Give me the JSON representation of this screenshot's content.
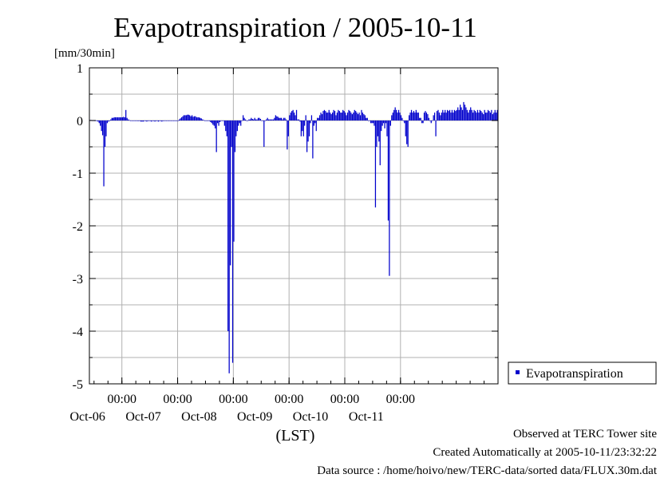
{
  "chart_data": {
    "type": "bar",
    "title": "Evapotranspiration / 2005-10-11",
    "ylabel": "[mm/30min]",
    "xlabel": "(LST)",
    "ylim": [
      -5,
      1
    ],
    "yticks": [
      "1",
      "0",
      "-1",
      "-2",
      "-3",
      "-4",
      "-5"
    ],
    "xticks": [
      {
        "time": "00:00",
        "date": "Oct-06"
      },
      {
        "time": "00:00",
        "date": "Oct-07"
      },
      {
        "time": "00:00",
        "date": "Oct-08"
      },
      {
        "time": "00:00",
        "date": "Oct-09"
      },
      {
        "time": "00:00",
        "date": "Oct-10"
      },
      {
        "time": "00:00",
        "date": "Oct-11"
      }
    ],
    "grid": true,
    "legend": {
      "position": "right",
      "entries": [
        "Evapotranspiration"
      ]
    },
    "series": [
      {
        "name": "Evapotranspiration",
        "color": "#0000cc",
        "interval": "30min",
        "values": [
          0.01,
          0.01,
          0.0,
          0.0,
          -0.01,
          -0.01,
          0.0,
          -0.02,
          -0.05,
          -0.1,
          -0.2,
          -0.28,
          -1.25,
          -0.5,
          -0.3,
          -0.05,
          -0.02,
          0.0,
          0.02,
          0.05,
          0.05,
          0.06,
          0.06,
          0.06,
          0.06,
          0.06,
          0.06,
          0.06,
          0.06,
          0.07,
          0.06,
          0.2,
          0.05,
          0.02,
          0.01,
          0.0,
          0.0,
          0.0,
          0.0,
          0.0,
          0.0,
          -0.01,
          -0.01,
          -0.01,
          -0.02,
          -0.02,
          -0.02,
          -0.01,
          -0.01,
          -0.02,
          -0.01,
          -0.01,
          -0.01,
          -0.02,
          -0.01,
          -0.01,
          -0.02,
          -0.01,
          -0.01,
          -0.02,
          -0.01,
          -0.01,
          -0.02,
          -0.01,
          0.0,
          0.0,
          0.0,
          0.0,
          0.0,
          0.0,
          0.0,
          0.0,
          0.0,
          0.0,
          0.0,
          0.0,
          0.0,
          0.02,
          0.04,
          0.06,
          0.08,
          0.1,
          0.1,
          0.1,
          0.11,
          0.11,
          0.1,
          0.08,
          0.1,
          0.07,
          0.08,
          0.08,
          0.06,
          0.06,
          0.06,
          0.05,
          0.04,
          0.02,
          0.01,
          0.0,
          0.0,
          0.0,
          0.0,
          -0.01,
          -0.03,
          -0.05,
          -0.08,
          -0.1,
          -0.15,
          -0.6,
          -0.05,
          -0.1,
          -0.03,
          0.0,
          0.0,
          0.0,
          -0.1,
          -0.2,
          -0.3,
          -4.0,
          -4.8,
          -2.75,
          -0.5,
          -4.6,
          -2.3,
          -0.6,
          -0.3,
          -0.2,
          -0.1,
          -0.05,
          -0.1,
          0.0,
          0.1,
          0.05,
          0.02,
          0.0,
          0.0,
          0.02,
          0.02,
          0.05,
          0.03,
          0.02,
          0.05,
          0.02,
          0.02,
          0.05,
          0.05,
          0.03,
          0.0,
          0.0,
          -0.5,
          0.0,
          0.02,
          0.05,
          0.02,
          0.02,
          0.02,
          0.02,
          0.02,
          0.05,
          0.1,
          0.08,
          0.07,
          0.05,
          0.05,
          0.05,
          0.02,
          0.05,
          0.05,
          0.02,
          -0.55,
          -0.3,
          0.1,
          0.15,
          0.18,
          0.2,
          0.15,
          0.1,
          0.2,
          0.02,
          0.02,
          -0.02,
          -0.3,
          -0.2,
          -0.3,
          -0.1,
          0.1,
          -0.6,
          -0.4,
          -0.3,
          -0.05,
          0.1,
          -0.72,
          -0.1,
          -0.05,
          -0.2,
          0.05,
          0.05,
          0.1,
          0.15,
          0.12,
          0.18,
          0.2,
          0.18,
          0.15,
          0.15,
          0.2,
          0.15,
          0.12,
          0.15,
          0.2,
          0.18,
          0.1,
          0.15,
          0.2,
          0.18,
          0.15,
          0.15,
          0.2,
          0.18,
          0.15,
          0.1,
          0.15,
          0.2,
          0.18,
          0.15,
          0.12,
          0.15,
          0.2,
          0.18,
          0.15,
          0.12,
          0.15,
          0.1,
          0.2,
          0.15,
          0.12,
          0.1,
          0.05,
          0.05,
          0.0,
          0.0,
          -0.05,
          -0.05,
          -0.05,
          -0.1,
          -1.65,
          -0.5,
          -0.3,
          -0.4,
          -0.85,
          -0.2,
          -0.1,
          -0.05,
          -0.15,
          -0.05,
          -0.3,
          -1.9,
          -2.95,
          -0.1,
          0.1,
          0.15,
          0.2,
          0.25,
          0.2,
          0.15,
          0.2,
          0.15,
          0.1,
          0.05,
          0.0,
          -0.05,
          -0.3,
          -0.45,
          -0.5,
          0.1,
          0.15,
          0.2,
          0.15,
          0.18,
          0.15,
          0.2,
          0.15,
          0.15,
          0.05,
          0.05,
          -0.05,
          -0.05,
          0.15,
          0.18,
          0.15,
          0.12,
          0.05,
          0.0,
          -0.05,
          0.0,
          0.1,
          0.15,
          -0.3,
          0.18,
          0.2,
          0.15,
          0.1,
          0.15,
          0.2,
          0.15,
          0.2,
          0.15,
          0.2,
          0.18,
          0.2,
          0.15,
          0.2,
          0.15,
          0.2,
          0.18,
          0.2,
          0.25,
          0.2,
          0.3,
          0.25,
          0.2,
          0.35,
          0.3,
          0.25,
          0.2,
          0.15,
          0.2,
          0.25,
          0.2,
          0.15,
          0.2,
          0.18,
          0.15,
          0.2,
          0.15,
          0.2,
          0.18,
          0.15,
          0.12,
          0.2,
          0.15,
          0.15,
          0.2,
          0.18,
          0.15,
          0.2,
          0.12,
          0.15,
          0.2,
          0.15,
          0.2
        ]
      }
    ]
  },
  "footer": {
    "site": "Observed at TERC Tower site",
    "created": "Created Automatically at 2005-10-11/23:32:22",
    "source": "Data source : /home/hoivo/new/TERC-data/sorted  data/FLUX.30m.dat"
  }
}
